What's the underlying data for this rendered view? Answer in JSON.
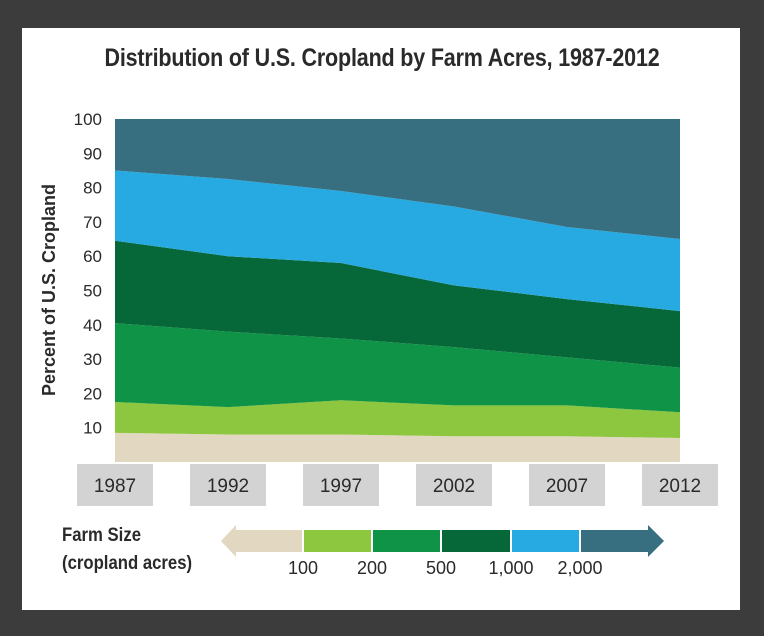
{
  "chart_data": {
    "type": "area",
    "stacked": true,
    "title": "Distribution of U.S. Cropland by Farm Acres, 1987-2012",
    "xlabel": "",
    "ylabel": "Percent of U.S. Cropland",
    "x": [
      "1987",
      "1992",
      "1997",
      "2002",
      "2007",
      "2012"
    ],
    "ylim": [
      0,
      100
    ],
    "yticks": [
      "10",
      "20",
      "30",
      "40",
      "50",
      "60",
      "70",
      "80",
      "90",
      "100"
    ],
    "series": [
      {
        "name": "<100",
        "color": "#e2d8c2",
        "values": [
          8.5,
          8,
          8,
          7.5,
          7.5,
          7
        ]
      },
      {
        "name": "100-200",
        "color": "#8dc63f",
        "values": [
          9,
          8,
          10,
          9,
          9,
          7.5
        ]
      },
      {
        "name": "200-500",
        "color": "#0f9447",
        "values": [
          23,
          22,
          18,
          17,
          14,
          13
        ]
      },
      {
        "name": "500-1,000",
        "color": "#066838",
        "values": [
          24,
          22,
          22,
          18,
          17,
          16.5
        ]
      },
      {
        "name": "1,000-2,000",
        "color": "#27aae1",
        "values": [
          20.5,
          22.5,
          21,
          23,
          21,
          21
        ]
      },
      {
        "name": ">2,000",
        "color": "#376f81",
        "values": [
          15,
          17.5,
          21,
          25.5,
          31.5,
          35
        ]
      }
    ]
  },
  "legend": {
    "title_line1": "Farm Size",
    "title_line2": "(cropland acres)",
    "ticks": [
      "100",
      "200",
      "500",
      "1,000",
      "2,000"
    ]
  }
}
